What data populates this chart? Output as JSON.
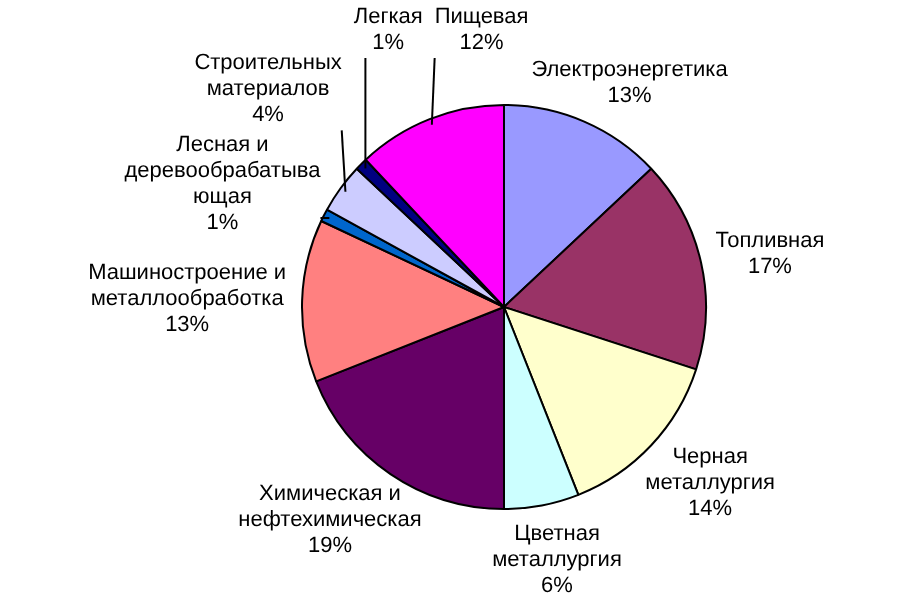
{
  "chart_data": {
    "type": "pie",
    "categories": [
      "Электроэнергетика",
      "Топливная",
      "Черная\nметаллургия",
      "Цветная\nметаллургия",
      "Химическая и\nнефтехимическая",
      "Машиностроение и\nметаллообработка",
      "Лесная и\nдеревообрабатыва\nющая",
      "Строительных\nматериалов",
      "Легкая",
      "Пищевая"
    ],
    "values": [
      13,
      17,
      14,
      6,
      19,
      13,
      1,
      4,
      1,
      12
    ],
    "colors": [
      "#9999ff",
      "#993366",
      "#ffffcc",
      "#ccffff",
      "#660066",
      "#ff8080",
      "#0066cc",
      "#ccccff",
      "#000080",
      "#ff00ff"
    ],
    "legend": false,
    "value_labels": [
      "13%",
      "17%",
      "14%",
      "6%",
      "19%",
      "13%",
      "1%",
      "4%",
      "1%",
      "12%"
    ]
  }
}
